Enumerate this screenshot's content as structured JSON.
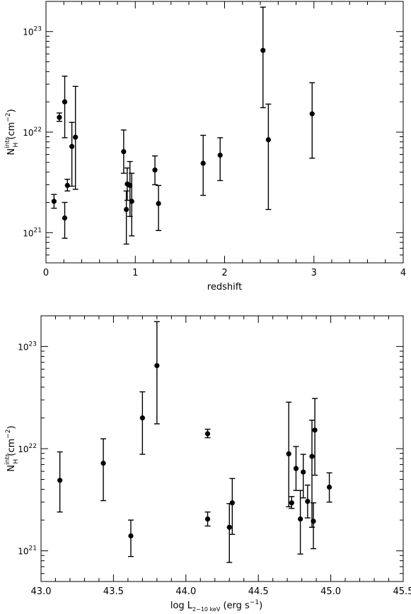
{
  "chart_data": [
    {
      "type": "scatter",
      "xlabel": "redshift",
      "ylabel": {
        "main": "N",
        "sub": "H",
        "sup": "intr",
        "unit": " (cm",
        "unit_sup": "−2",
        "close": ")"
      },
      "xlim": [
        0,
        4
      ],
      "ylim_log10": [
        20.7,
        23.3
      ],
      "yscale": "log",
      "x_ticks": [
        {
          "value": 0,
          "label": "0"
        },
        {
          "value": 1,
          "label": "1"
        },
        {
          "value": 2,
          "label": "2"
        },
        {
          "value": 3,
          "label": "3"
        },
        {
          "value": 4,
          "label": "4"
        }
      ],
      "y_ticks": [
        {
          "value": 21,
          "base": "10",
          "exp": "21"
        },
        {
          "value": 22,
          "base": "10",
          "exp": "22"
        },
        {
          "value": 23,
          "base": "10",
          "exp": "23"
        }
      ],
      "points": [
        {
          "x": 0.09,
          "y": 2.05e+21,
          "lo": 1.75e+21,
          "hi": 2.4e+21
        },
        {
          "x": 0.15,
          "y": 1.4e+22,
          "lo": 1.28e+22,
          "hi": 1.55e+22
        },
        {
          "x": 0.21,
          "y": 2e+22,
          "lo": 8.8e+21,
          "hi": 3.6e+22
        },
        {
          "x": 0.21,
          "y": 1.4e+21,
          "lo": 8.8e+20,
          "hi": 2e+21
        },
        {
          "x": 0.24,
          "y": 2.95e+21,
          "lo": 2.6e+21,
          "hi": 3.4e+21
        },
        {
          "x": 0.29,
          "y": 7.2e+21,
          "lo": 2.9e+21,
          "hi": 1.25e+22
        },
        {
          "x": 0.33,
          "y": 8.9e+21,
          "lo": 2.7e+21,
          "hi": 2.85e+22
        },
        {
          "x": 0.87,
          "y": 6.4e+21,
          "lo": 3.9e+21,
          "hi": 1.05e+22
        },
        {
          "x": 0.9,
          "y": 1.7e+21,
          "lo": 7.7e+20,
          "hi": 2.6e+21
        },
        {
          "x": 0.91,
          "y": 3.05e+21,
          "lo": 2.1e+21,
          "hi": 4.4e+21
        },
        {
          "x": 0.94,
          "y": 2.95e+21,
          "lo": 1.45e+21,
          "hi": 5.1e+21
        },
        {
          "x": 0.96,
          "y": 2.05e+21,
          "lo": 9.3e+20,
          "hi": 3.9e+21
        },
        {
          "x": 1.22,
          "y": 4.2e+21,
          "lo": 3e+21,
          "hi": 5.8e+21
        },
        {
          "x": 1.26,
          "y": 1.95e+21,
          "lo": 1.05e+21,
          "hi": 2.95e+21
        },
        {
          "x": 1.76,
          "y": 4.9e+21,
          "lo": 2.35e+21,
          "hi": 9.3e+21
        },
        {
          "x": 1.95,
          "y": 5.9e+21,
          "lo": 3.3e+21,
          "hi": 8.8e+21
        },
        {
          "x": 2.43,
          "y": 6.5e+22,
          "lo": 1.75e+22,
          "hi": 1.75e+23
        },
        {
          "x": 2.49,
          "y": 8.4e+21,
          "lo": 1.7e+21,
          "hi": 1.9e+22
        },
        {
          "x": 2.98,
          "y": 1.52e+22,
          "lo": 5.5e+21,
          "hi": 3.1e+22
        }
      ]
    },
    {
      "type": "scatter",
      "xlabel": {
        "main": "log L",
        "sub": "2−10 keV",
        "unit": " (erg s",
        "unit_sup": "−1",
        "close": ")"
      },
      "ylabel": {
        "main": "N",
        "sub": "H",
        "sup": "intr",
        "unit": " (cm",
        "unit_sup": "−2",
        "close": ")"
      },
      "xlim": [
        43.0,
        45.5
      ],
      "ylim_log10": [
        20.7,
        23.3
      ],
      "yscale": "log",
      "x_ticks": [
        {
          "value": 43.0,
          "label": "43.0"
        },
        {
          "value": 43.5,
          "label": "43.5"
        },
        {
          "value": 44.0,
          "label": "44.0"
        },
        {
          "value": 44.5,
          "label": "44.5"
        },
        {
          "value": 45.0,
          "label": "45.0"
        },
        {
          "value": 45.5,
          "label": "45.5"
        }
      ],
      "y_ticks": [
        {
          "value": 21,
          "base": "10",
          "exp": "21"
        },
        {
          "value": 22,
          "base": "10",
          "exp": "22"
        },
        {
          "value": 23,
          "base": "10",
          "exp": "23"
        }
      ],
      "points": [
        {
          "x": 43.13,
          "y": 4.9e+21,
          "lo": 2.4e+21,
          "hi": 9.3e+21
        },
        {
          "x": 43.43,
          "y": 7.2e+21,
          "lo": 3.1e+21,
          "hi": 1.25e+22
        },
        {
          "x": 43.62,
          "y": 1.4e+21,
          "lo": 8.8e+20,
          "hi": 2e+21
        },
        {
          "x": 43.7,
          "y": 2e+22,
          "lo": 8.8e+21,
          "hi": 3.6e+22
        },
        {
          "x": 43.8,
          "y": 6.5e+22,
          "lo": 1.75e+22,
          "hi": 1.75e+23
        },
        {
          "x": 44.15,
          "y": 1.4e+22,
          "lo": 1.28e+22,
          "hi": 1.55e+22
        },
        {
          "x": 44.15,
          "y": 2.05e+21,
          "lo": 1.75e+21,
          "hi": 2.4e+21
        },
        {
          "x": 44.3,
          "y": 1.7e+21,
          "lo": 7.7e+20,
          "hi": 2.9e+21
        },
        {
          "x": 44.32,
          "y": 2.95e+21,
          "lo": 1.45e+21,
          "hi": 5.1e+21
        },
        {
          "x": 44.71,
          "y": 8.9e+21,
          "lo": 2.7e+21,
          "hi": 2.85e+22
        },
        {
          "x": 44.73,
          "y": 2.95e+21,
          "lo": 2.6e+21,
          "hi": 3.4e+21
        },
        {
          "x": 44.76,
          "y": 6.4e+21,
          "lo": 3.9e+21,
          "hi": 1.05e+22
        },
        {
          "x": 44.79,
          "y": 2.05e+21,
          "lo": 9.3e+20,
          "hi": 3.9e+21
        },
        {
          "x": 44.81,
          "y": 5.9e+21,
          "lo": 3.3e+21,
          "hi": 8.8e+21
        },
        {
          "x": 44.84,
          "y": 3.05e+21,
          "lo": 2.1e+21,
          "hi": 4.4e+21
        },
        {
          "x": 44.87,
          "y": 8.4e+21,
          "lo": 1.7e+21,
          "hi": 1.9e+22
        },
        {
          "x": 44.88,
          "y": 1.95e+21,
          "lo": 1.05e+21,
          "hi": 2.95e+21
        },
        {
          "x": 44.89,
          "y": 1.52e+22,
          "lo": 5.5e+21,
          "hi": 3.1e+22
        },
        {
          "x": 44.99,
          "y": 4.2e+21,
          "lo": 3e+21,
          "hi": 5.8e+21
        }
      ]
    }
  ]
}
